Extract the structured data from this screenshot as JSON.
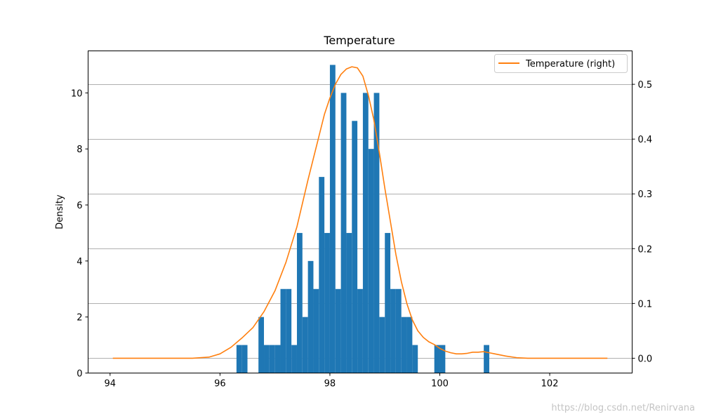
{
  "chart_data": {
    "type": "bar",
    "title": "Temperature",
    "ylabel": "Density",
    "xlabel": "",
    "xlim": [
      93.6,
      103.5
    ],
    "ylim": [
      0,
      11.5
    ],
    "ylim_right": [
      -0.027,
      0.561
    ],
    "x_ticks": [
      94,
      96,
      98,
      100,
      102
    ],
    "y_ticks": [
      0,
      2,
      4,
      6,
      8,
      10
    ],
    "y2_ticks": [
      0.0,
      0.1,
      0.2,
      0.3,
      0.4,
      0.5
    ],
    "x_tick_labels": [
      "94",
      "96",
      "98",
      "100",
      "102"
    ],
    "y_tick_labels": [
      "0",
      "2",
      "4",
      "6",
      "8",
      "10"
    ],
    "y2_tick_labels": [
      "0.0",
      "0.1",
      "0.2",
      "0.3",
      "0.4",
      "0.5"
    ],
    "grid": "horizontal (right axis)",
    "legend_position": "top-right",
    "bar_color": "#1f77b4",
    "line_color": "#ff7f0e",
    "histogram": {
      "name": "",
      "x": [
        96.3,
        96.4,
        96.7,
        96.8,
        96.9,
        97.0,
        97.1,
        97.2,
        97.3,
        97.4,
        97.5,
        97.6,
        97.7,
        97.8,
        97.9,
        98.0,
        98.1,
        98.2,
        98.3,
        98.4,
        98.5,
        98.6,
        98.7,
        98.8,
        98.9,
        99.0,
        99.1,
        99.2,
        99.3,
        99.4,
        99.5,
        99.9,
        100.0,
        100.8
      ],
      "values": [
        1,
        1,
        2,
        1,
        1,
        1,
        3,
        3,
        1,
        5,
        2,
        4,
        3,
        7,
        5,
        11,
        3,
        10,
        5,
        9,
        3,
        10,
        8,
        10,
        2,
        5,
        3,
        3,
        2,
        2,
        1,
        1,
        1,
        1
      ]
    },
    "series": [
      {
        "name": "Temperature (right)",
        "axis": "right",
        "x": [
          94.05,
          95.0,
          95.5,
          95.8,
          96.0,
          96.2,
          96.4,
          96.6,
          96.8,
          97.0,
          97.2,
          97.4,
          97.6,
          97.8,
          97.9,
          98.0,
          98.1,
          98.2,
          98.3,
          98.4,
          98.5,
          98.6,
          98.7,
          98.8,
          98.9,
          99.0,
          99.1,
          99.2,
          99.3,
          99.4,
          99.5,
          99.6,
          99.7,
          99.8,
          99.9,
          100.0,
          100.1,
          100.2,
          100.3,
          100.4,
          100.5,
          100.6,
          100.7,
          100.8,
          100.9,
          101.0,
          101.2,
          101.4,
          101.6,
          102.0,
          103.05
        ],
        "y": [
          0.0,
          0.0,
          0.0,
          0.002,
          0.008,
          0.02,
          0.037,
          0.056,
          0.085,
          0.123,
          0.175,
          0.24,
          0.325,
          0.405,
          0.445,
          0.475,
          0.5,
          0.518,
          0.528,
          0.532,
          0.53,
          0.515,
          0.48,
          0.435,
          0.375,
          0.31,
          0.25,
          0.19,
          0.14,
          0.1,
          0.07,
          0.05,
          0.038,
          0.03,
          0.025,
          0.018,
          0.013,
          0.01,
          0.008,
          0.008,
          0.009,
          0.011,
          0.011,
          0.012,
          0.01,
          0.008,
          0.004,
          0.001,
          0.0,
          0.0,
          0.0
        ]
      }
    ],
    "legend": [
      "Temperature (right)"
    ]
  },
  "watermark": "https://blog.csdn.net/Renirvana"
}
